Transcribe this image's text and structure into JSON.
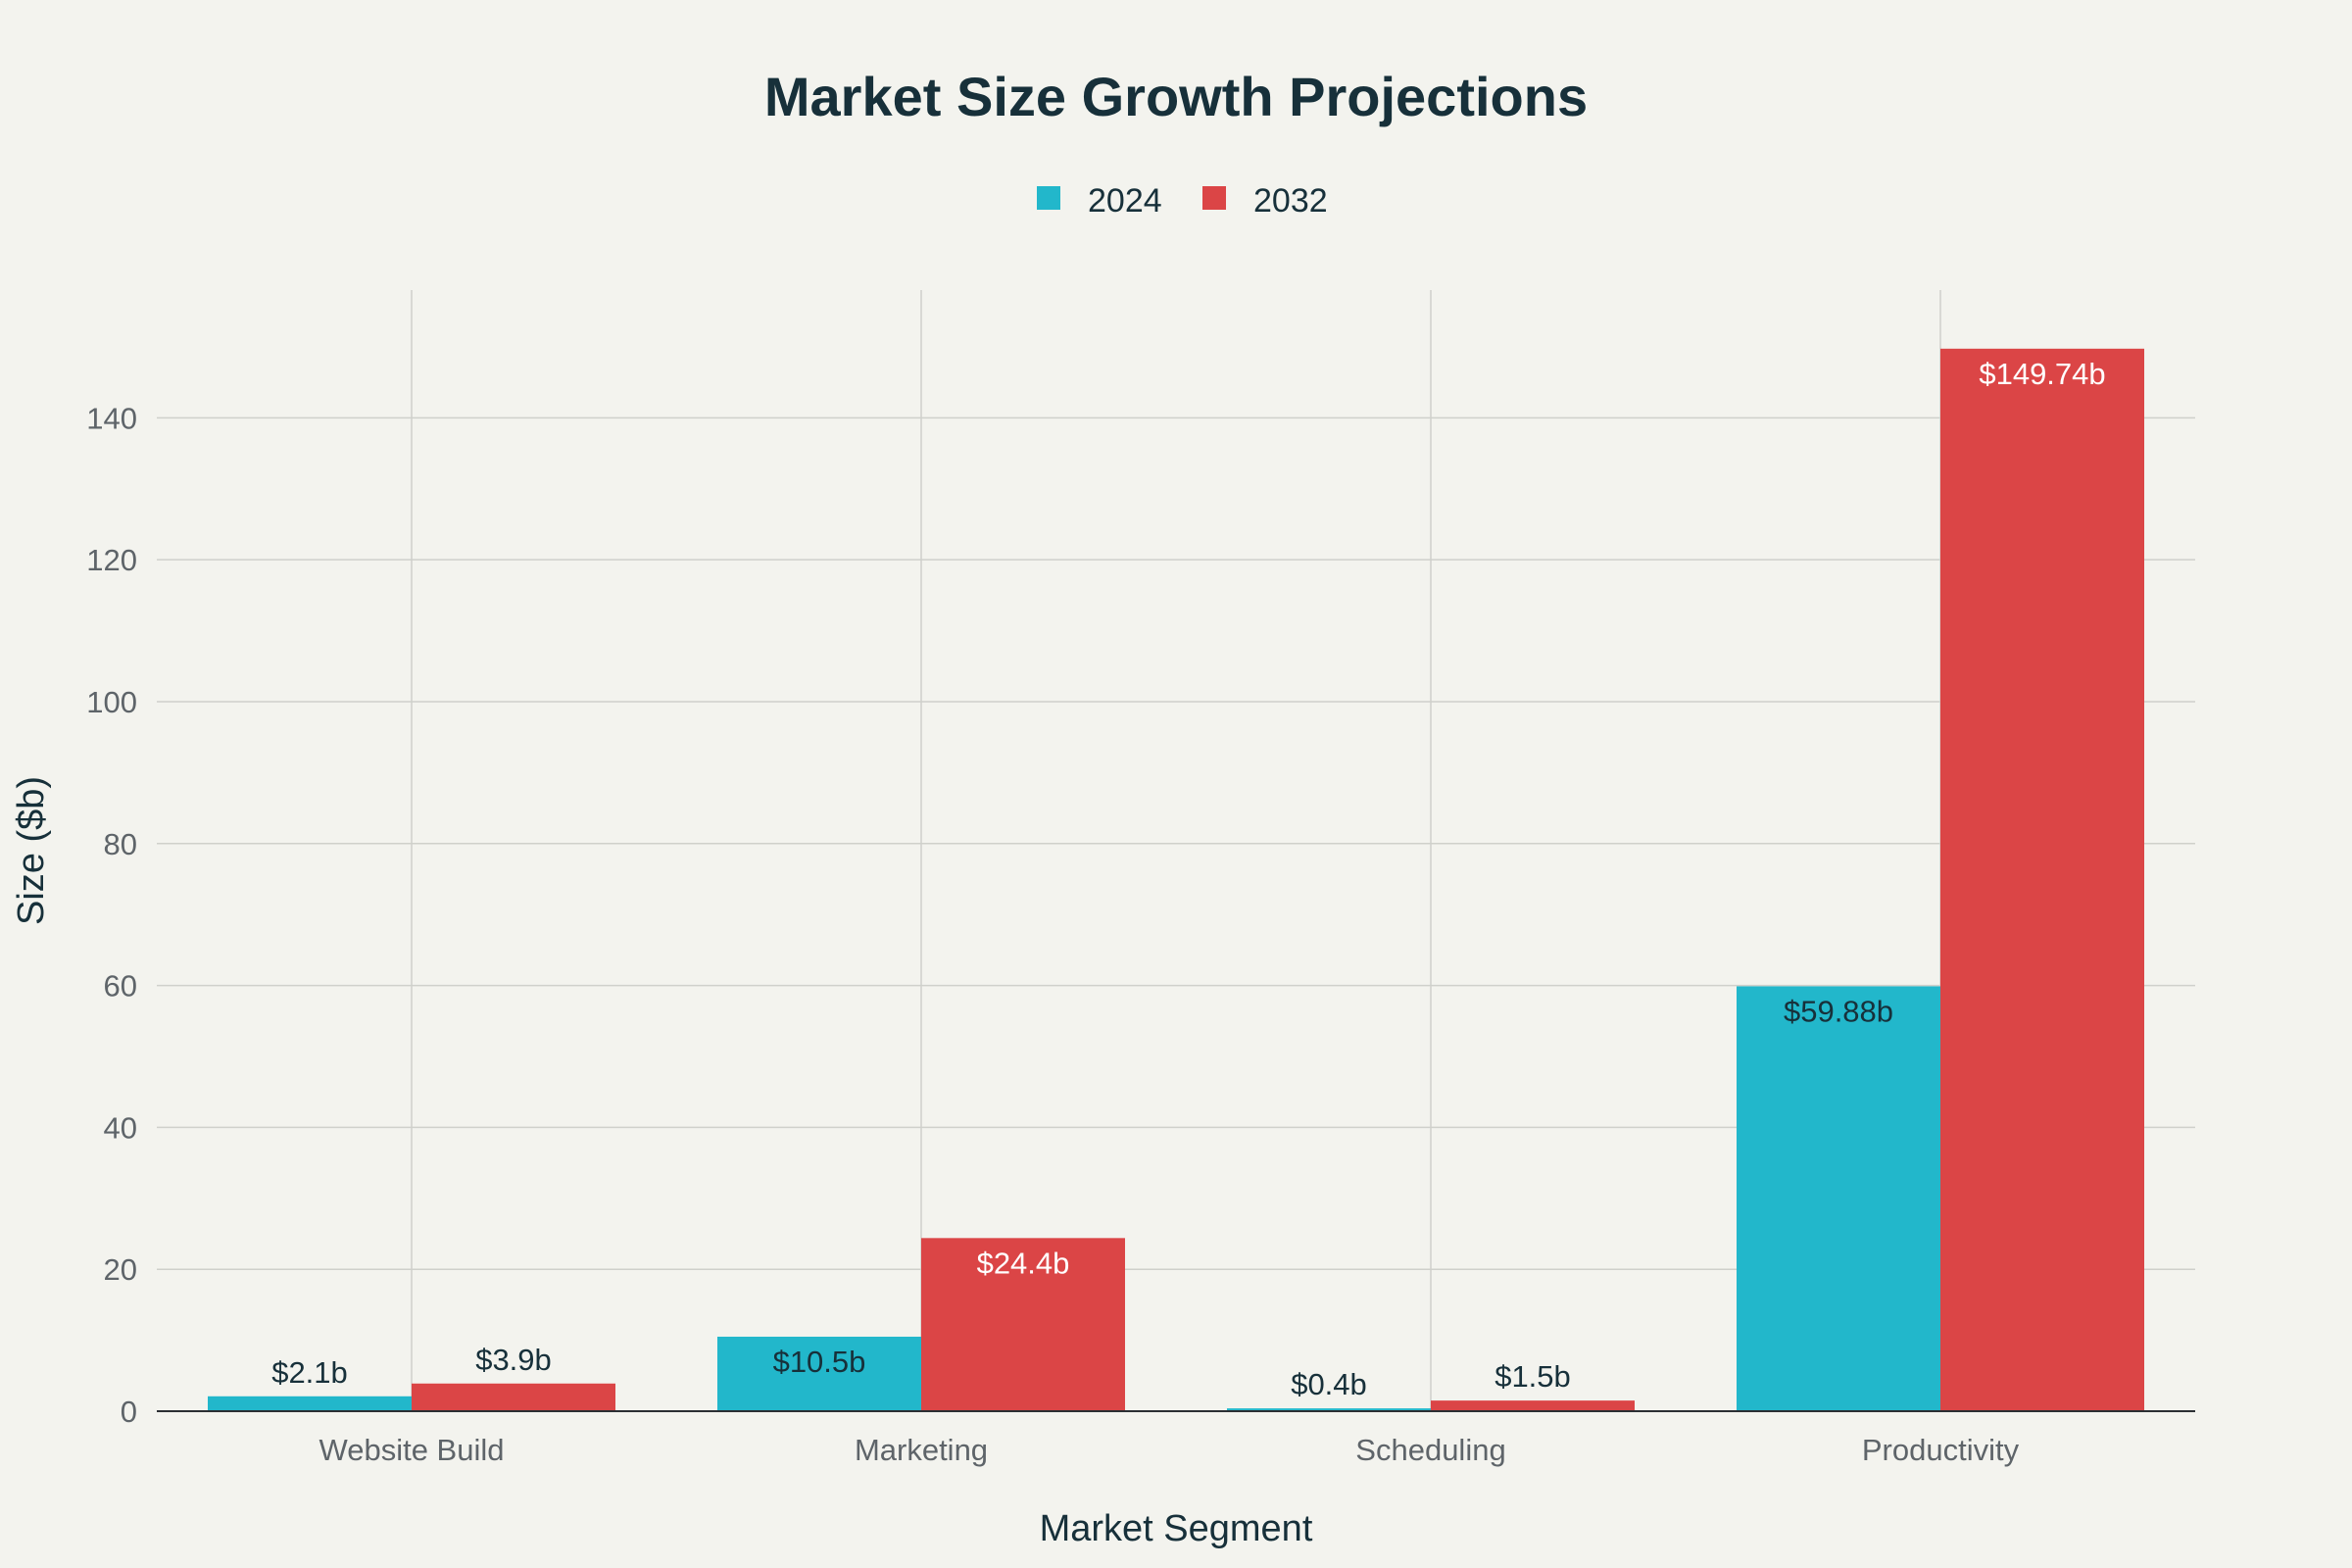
{
  "chart_data": {
    "type": "bar",
    "title": "Market Size Growth Projections",
    "xlabel": "Market Segment",
    "ylabel": "Size ($b)",
    "categories": [
      "Website Build",
      "Marketing",
      "Scheduling",
      "Productivity"
    ],
    "series": [
      {
        "name": "2024",
        "color": "#22b7cb",
        "values": [
          2.1,
          10.5,
          0.4,
          59.88
        ],
        "labels": [
          "$2.1b",
          "$10.5b",
          "$0.4b",
          "$59.88b"
        ]
      },
      {
        "name": "2032",
        "color": "#db4546",
        "values": [
          3.9,
          24.4,
          1.5,
          149.74
        ],
        "labels": [
          "$3.9b",
          "$24.4b",
          "$1.5b",
          "$149.74b"
        ]
      }
    ],
    "ylim": [
      0,
      158
    ],
    "yticks": [
      0,
      20,
      40,
      60,
      80,
      100,
      120,
      140
    ],
    "grid": true,
    "legend_position": "top-center"
  },
  "colors": {
    "background": "#f3f3ee",
    "text": "#17303a",
    "tick_text": "#5e6469",
    "grid": "#cfd0cb"
  }
}
